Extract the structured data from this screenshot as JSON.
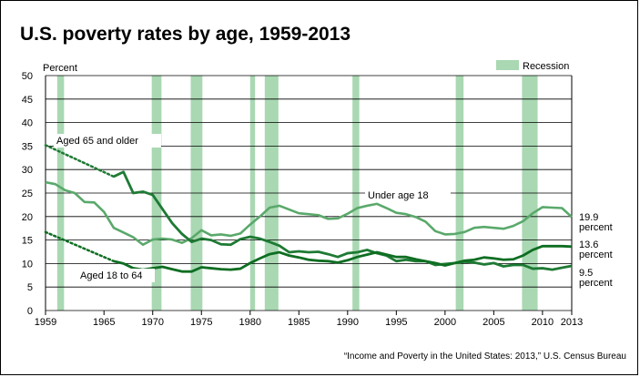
{
  "chart_data": {
    "type": "line",
    "title": "U.S. poverty rates by age, 1959-2013",
    "ylabel": "Percent",
    "xlabel": "",
    "xlim": [
      1959,
      2013
    ],
    "ylim": [
      0,
      50
    ],
    "yticks": [
      0,
      5,
      10,
      15,
      20,
      25,
      30,
      35,
      40,
      45,
      50
    ],
    "xticks": [
      1959,
      1965,
      1970,
      1975,
      1980,
      1985,
      1990,
      1995,
      2000,
      2005,
      2010,
      2013
    ],
    "grid": true,
    "legend": {
      "label": "Recession",
      "position": "top-right"
    },
    "recessions": [
      [
        1960.2,
        1960.9
      ],
      [
        1969.9,
        1970.9
      ],
      [
        1973.9,
        1975.1
      ],
      [
        1980.0,
        1980.5
      ],
      [
        1981.5,
        1982.9
      ],
      [
        1990.5,
        1991.2
      ],
      [
        2001.1,
        2001.9
      ],
      [
        2007.9,
        2009.5
      ]
    ],
    "source": "“Income and Poverty in the United States: 2013,” U.S. Census Bureau",
    "series": [
      {
        "name": "Under age 18",
        "color": "#5aa96b",
        "x": [
          1959,
          1960,
          1961,
          1962,
          1963,
          1964,
          1965,
          1966,
          1967,
          1968,
          1969,
          1970,
          1971,
          1972,
          1973,
          1974,
          1975,
          1976,
          1977,
          1978,
          1979,
          1980,
          1981,
          1982,
          1983,
          1984,
          1985,
          1986,
          1987,
          1988,
          1989,
          1990,
          1991,
          1992,
          1993,
          1994,
          1995,
          1996,
          1997,
          1998,
          1999,
          2000,
          2001,
          2002,
          2003,
          2004,
          2005,
          2006,
          2007,
          2008,
          2009,
          2010,
          2011,
          2012,
          2013
        ],
        "values": [
          27.3,
          26.9,
          25.6,
          25.0,
          23.1,
          23.0,
          21.0,
          17.6,
          16.6,
          15.6,
          14.0,
          15.1,
          15.3,
          15.1,
          14.4,
          15.4,
          17.1,
          16.0,
          16.2,
          15.9,
          16.4,
          18.3,
          20.0,
          21.9,
          22.3,
          21.5,
          20.7,
          20.5,
          20.3,
          19.5,
          19.6,
          20.6,
          21.8,
          22.3,
          22.7,
          21.8,
          20.8,
          20.5,
          19.9,
          18.9,
          16.9,
          16.2,
          16.3,
          16.7,
          17.6,
          17.8,
          17.6,
          17.4,
          18.0,
          19.0,
          20.7,
          22.0,
          21.9,
          21.8,
          19.9
        ],
        "label": "Under age 18",
        "end_label": [
          "19.9",
          "percent"
        ]
      },
      {
        "name": "Aged 65 and older",
        "color": "#1e7a34",
        "x": [
          1966,
          1967,
          1968,
          1969,
          1970,
          1971,
          1972,
          1973,
          1974,
          1975,
          1976,
          1977,
          1978,
          1979,
          1980,
          1981,
          1982,
          1983,
          1984,
          1985,
          1986,
          1987,
          1988,
          1989,
          1990,
          1991,
          1992,
          1993,
          1994,
          1995,
          1996,
          1997,
          1998,
          1999,
          2000,
          2001,
          2002,
          2003,
          2004,
          2005,
          2006,
          2007,
          2008,
          2009,
          2010,
          2011,
          2012,
          2013
        ],
        "values": [
          28.5,
          29.5,
          25.0,
          25.3,
          24.6,
          21.6,
          18.6,
          16.3,
          14.6,
          15.3,
          15.0,
          14.1,
          14.0,
          15.2,
          15.7,
          15.3,
          14.6,
          13.8,
          12.4,
          12.6,
          12.4,
          12.5,
          12.0,
          11.4,
          12.2,
          12.4,
          12.9,
          12.2,
          11.7,
          10.5,
          10.8,
          10.5,
          10.5,
          9.7,
          9.9,
          10.1,
          10.4,
          10.2,
          9.8,
          10.1,
          9.4,
          9.7,
          9.7,
          8.9,
          9.0,
          8.7,
          9.1,
          9.5
        ],
        "projection_x": [
          1959,
          1966
        ],
        "projection_values": [
          35.2,
          28.5
        ],
        "label": "Aged 65 and older",
        "end_label": [
          "9.5",
          "percent"
        ]
      },
      {
        "name": "Aged 18 to 64",
        "color": "#0e6e22",
        "x": [
          1966,
          1967,
          1968,
          1969,
          1970,
          1971,
          1972,
          1973,
          1974,
          1975,
          1976,
          1977,
          1978,
          1979,
          1980,
          1981,
          1982,
          1983,
          1984,
          1985,
          1986,
          1987,
          1988,
          1989,
          1990,
          1991,
          1992,
          1993,
          1994,
          1995,
          1996,
          1997,
          1998,
          1999,
          2000,
          2001,
          2002,
          2003,
          2004,
          2005,
          2006,
          2007,
          2008,
          2009,
          2010,
          2011,
          2012,
          2013
        ],
        "values": [
          10.5,
          10.0,
          9.0,
          8.7,
          9.0,
          9.3,
          8.8,
          8.3,
          8.3,
          9.2,
          9.0,
          8.8,
          8.7,
          8.9,
          10.1,
          11.1,
          12.0,
          12.4,
          11.7,
          11.3,
          10.8,
          10.6,
          10.5,
          10.2,
          10.7,
          11.4,
          11.9,
          12.4,
          11.9,
          11.4,
          11.4,
          10.9,
          10.5,
          10.1,
          9.6,
          10.1,
          10.6,
          10.8,
          11.3,
          11.1,
          10.8,
          10.9,
          11.7,
          12.9,
          13.7,
          13.7,
          13.7,
          13.6
        ],
        "projection_x": [
          1959,
          1966
        ],
        "projection_values": [
          16.7,
          10.5
        ],
        "label": "Aged 18 to 64",
        "end_label": [
          "13.6",
          "percent"
        ]
      }
    ]
  }
}
